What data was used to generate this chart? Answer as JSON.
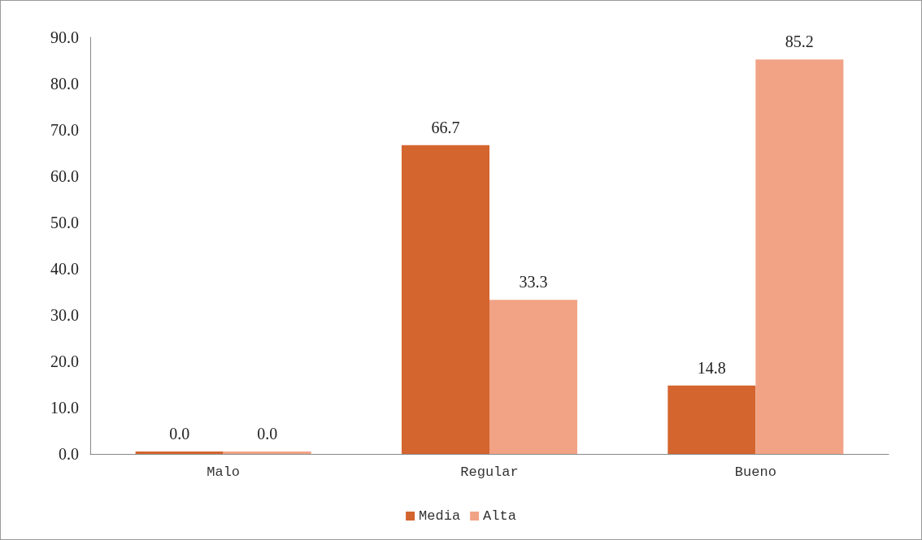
{
  "chart_data": {
    "type": "bar",
    "categories": [
      "Malo",
      "Regular",
      "Bueno"
    ],
    "series": [
      {
        "name": "Media",
        "color": "#d4652f",
        "values": [
          0,
          66.7,
          14.8
        ],
        "value_labels": [
          "0.0",
          "66.7",
          "14.8"
        ]
      },
      {
        "name": "Alta",
        "color": "#f2a386",
        "values": [
          0,
          33.3,
          85.2
        ],
        "value_labels": [
          "0.0",
          "33.3",
          "85.2"
        ]
      }
    ],
    "ylim": [
      0,
      90
    ],
    "yticks": [
      {
        "value": 0,
        "label": "0.0"
      },
      {
        "value": 10,
        "label": "10.0"
      },
      {
        "value": 20,
        "label": "20.0"
      },
      {
        "value": 30,
        "label": "30.0"
      },
      {
        "value": 40,
        "label": "40.0"
      },
      {
        "value": 50,
        "label": "50.0"
      },
      {
        "value": 60,
        "label": "60.0"
      },
      {
        "value": 70,
        "label": "70.0"
      },
      {
        "value": 80,
        "label": "80.0"
      },
      {
        "value": 90,
        "label": "90.0"
      }
    ],
    "grid": false,
    "legend": "bottom"
  }
}
